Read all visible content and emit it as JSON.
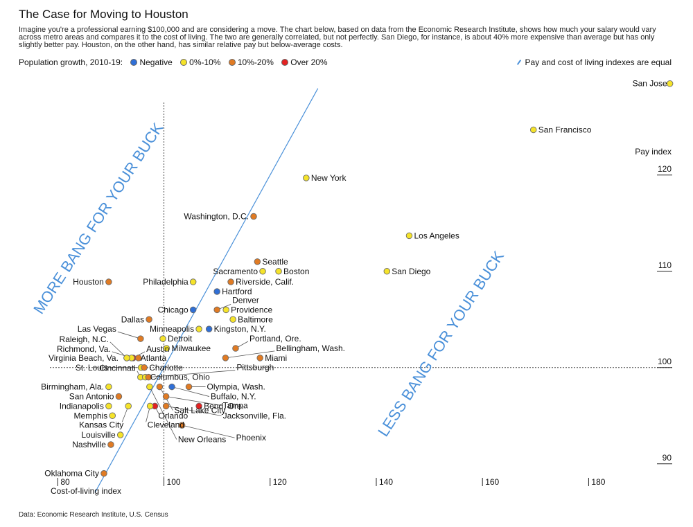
{
  "chart_data": {
    "type": "scatter",
    "title": "The Case for Moving to Houston",
    "subtitle": "Imagine you're a professional earning $100,000 and are considering a move. The chart below, based on data from the Economic Research Institute, shows how much your salary would vary across metro areas and compares it to the cost of living. The two are generally correlated, but not perfectly. San Diego, for instance, is about 40% more expensive than average but has only slightly better pay. Houston, on the other hand, has similar relative pay but below-average costs.",
    "xlabel": "Cost-of-living index",
    "ylabel": "Pay index",
    "xlim": [
      78,
      196
    ],
    "ylim": [
      88.4,
      130.2
    ],
    "x_ticks": [
      80,
      100,
      120,
      140,
      160,
      180
    ],
    "y_ticks": [
      90,
      100,
      110,
      120
    ],
    "legend": {
      "label": "Population growth, 2010-19:",
      "items": [
        {
          "key": "neg",
          "label": "Negative",
          "color": "#2f6fd6"
        },
        {
          "key": "low",
          "label": "0%-10%",
          "color": "#f5e32a"
        },
        {
          "key": "mid",
          "label": "10%-20%",
          "color": "#e07b24"
        },
        {
          "key": "high",
          "label": "Over 20%",
          "color": "#e32222"
        }
      ],
      "equal_line_label": "Pay and cost of living indexes are equal"
    },
    "zone_labels": {
      "more": "MORE BANG FOR YOUR BUCK",
      "less": "LESS BANG FOR YOUR BUCK"
    },
    "equal_line": {
      "x1": 87,
      "x2": 129
    },
    "reference": {
      "x": 100,
      "y": 100
    },
    "points": [
      {
        "name": "San Jose",
        "x": 195.3,
        "y": 129.5,
        "g": "low"
      },
      {
        "name": "San Francisco",
        "x": 169.6,
        "y": 124.7,
        "g": "low"
      },
      {
        "name": "New York",
        "x": 126.8,
        "y": 119.7,
        "g": "low"
      },
      {
        "name": "Washington, D.C.",
        "x": 116.9,
        "y": 115.7,
        "g": "mid"
      },
      {
        "name": "Los Angeles",
        "x": 146.2,
        "y": 113.7,
        "g": "low"
      },
      {
        "name": "Seattle",
        "x": 117.6,
        "y": 111.0,
        "g": "mid"
      },
      {
        "name": "Sacramento",
        "x": 118.6,
        "y": 110.0,
        "g": "low"
      },
      {
        "name": "Boston",
        "x": 121.6,
        "y": 110.0,
        "g": "low"
      },
      {
        "name": "San Diego",
        "x": 142.0,
        "y": 110.0,
        "g": "low"
      },
      {
        "name": "Houston",
        "x": 89.6,
        "y": 108.9,
        "g": "mid"
      },
      {
        "name": "Philadelphia",
        "x": 105.5,
        "y": 108.9,
        "g": "low"
      },
      {
        "name": "Riverside, Calif.",
        "x": 112.6,
        "y": 108.9,
        "g": "mid"
      },
      {
        "name": "Hartford",
        "x": 110.0,
        "y": 107.9,
        "g": "neg"
      },
      {
        "name": "Chicago",
        "x": 105.5,
        "y": 106.0,
        "g": "neg"
      },
      {
        "name": "Denver",
        "x": 110.0,
        "y": 106.0,
        "g": "mid"
      },
      {
        "name": "Providence",
        "x": 111.7,
        "y": 106.0,
        "g": "low"
      },
      {
        "name": "Baltimore",
        "x": 113.0,
        "y": 105.0,
        "g": "low"
      },
      {
        "name": "Dallas",
        "x": 97.2,
        "y": 105.0,
        "g": "mid"
      },
      {
        "name": "Las Vegas",
        "x": 95.6,
        "y": 103.0,
        "g": "mid"
      },
      {
        "name": "Minneapolis",
        "x": 106.6,
        "y": 104.0,
        "g": "low"
      },
      {
        "name": "Kingston, N.Y.",
        "x": 108.5,
        "y": 104.0,
        "g": "neg"
      },
      {
        "name": "Detroit",
        "x": 99.8,
        "y": 103.0,
        "g": "low"
      },
      {
        "name": "Portland, Ore.",
        "x": 113.5,
        "y": 102.0,
        "g": "mid"
      },
      {
        "name": "Milwaukee",
        "x": 100.5,
        "y": 102.0,
        "g": "low"
      },
      {
        "name": "Bellingham, Wash.",
        "x": 111.6,
        "y": 101.0,
        "g": "mid"
      },
      {
        "name": "Miami",
        "x": 118.1,
        "y": 101.0,
        "g": "mid"
      },
      {
        "name": "Raleigh, N.C.",
        "x": 93.0,
        "y": 101.0,
        "g": "low"
      },
      {
        "name": "Austin",
        "x": 94.2,
        "y": 101.0,
        "g": "high"
      },
      {
        "name": "Richmond, Va.",
        "x": 93.9,
        "y": 101.0,
        "g": "low"
      },
      {
        "name": "Virginia Beach, Va.",
        "x": 93.0,
        "y": 101.0,
        "g": "low"
      },
      {
        "name": "Atlanta",
        "x": 95.2,
        "y": 101.0,
        "g": "mid"
      },
      {
        "name": "St. Louis",
        "x": 95.7,
        "y": 100.0,
        "g": "low"
      },
      {
        "name": "Charlotte",
        "x": 96.3,
        "y": 100.0,
        "g": "mid"
      },
      {
        "name": "Cincinnati",
        "x": 95.6,
        "y": 99.0,
        "g": "low"
      },
      {
        "name": "Columbus, Ohio",
        "x": 96.5,
        "y": 99.0,
        "g": "low"
      },
      {
        "name": "Pittsburgh",
        "x": 97.1,
        "y": 99.0,
        "g": "mid"
      },
      {
        "name": "Birmingham, Ala.",
        "x": 89.6,
        "y": 98.0,
        "g": "low"
      },
      {
        "name": "Olympia, Wash.",
        "x": 104.7,
        "y": 98.0,
        "g": "mid"
      },
      {
        "name": "Buffalo, N.Y.",
        "x": 101.5,
        "y": 98.0,
        "g": "neg"
      },
      {
        "name": "San Antonio",
        "x": 91.5,
        "y": 97.0,
        "g": "mid"
      },
      {
        "name": "Indianapolis",
        "x": 89.6,
        "y": 96.0,
        "g": "low"
      },
      {
        "name": "Memphis",
        "x": 90.3,
        "y": 95.0,
        "g": "low"
      },
      {
        "name": "Bend, Ore.",
        "x": 106.6,
        "y": 96.0,
        "g": "high"
      },
      {
        "name": "Jacksonville, Fla.",
        "x": 100.4,
        "y": 96.0,
        "g": "mid"
      },
      {
        "name": "Orlando",
        "x": 98.3,
        "y": 96.0,
        "g": "high"
      },
      {
        "name": "Kansas City",
        "x": 93.3,
        "y": 96.0,
        "g": "low"
      },
      {
        "name": "Cleveland",
        "x": 97.4,
        "y": 96.0,
        "g": "low"
      },
      {
        "name": "Tampa",
        "x": 100.4,
        "y": 97.0,
        "g": "mid"
      },
      {
        "name": "Phoenix",
        "x": 103.4,
        "y": 94.0,
        "g": "mid"
      },
      {
        "name": "Salt Lake City",
        "x": 99.2,
        "y": 98.0,
        "g": "mid"
      },
      {
        "name": "New Orleans",
        "x": 97.3,
        "y": 98.0,
        "g": "low"
      },
      {
        "name": "Louisville",
        "x": 91.8,
        "y": 93.0,
        "g": "low"
      },
      {
        "name": "Nashville",
        "x": 90.0,
        "y": 92.0,
        "g": "mid"
      },
      {
        "name": "Oklahoma City",
        "x": 88.7,
        "y": 89.0,
        "g": "mid"
      }
    ]
  },
  "source": "Data: Economic Research Institute, U.S. Census"
}
